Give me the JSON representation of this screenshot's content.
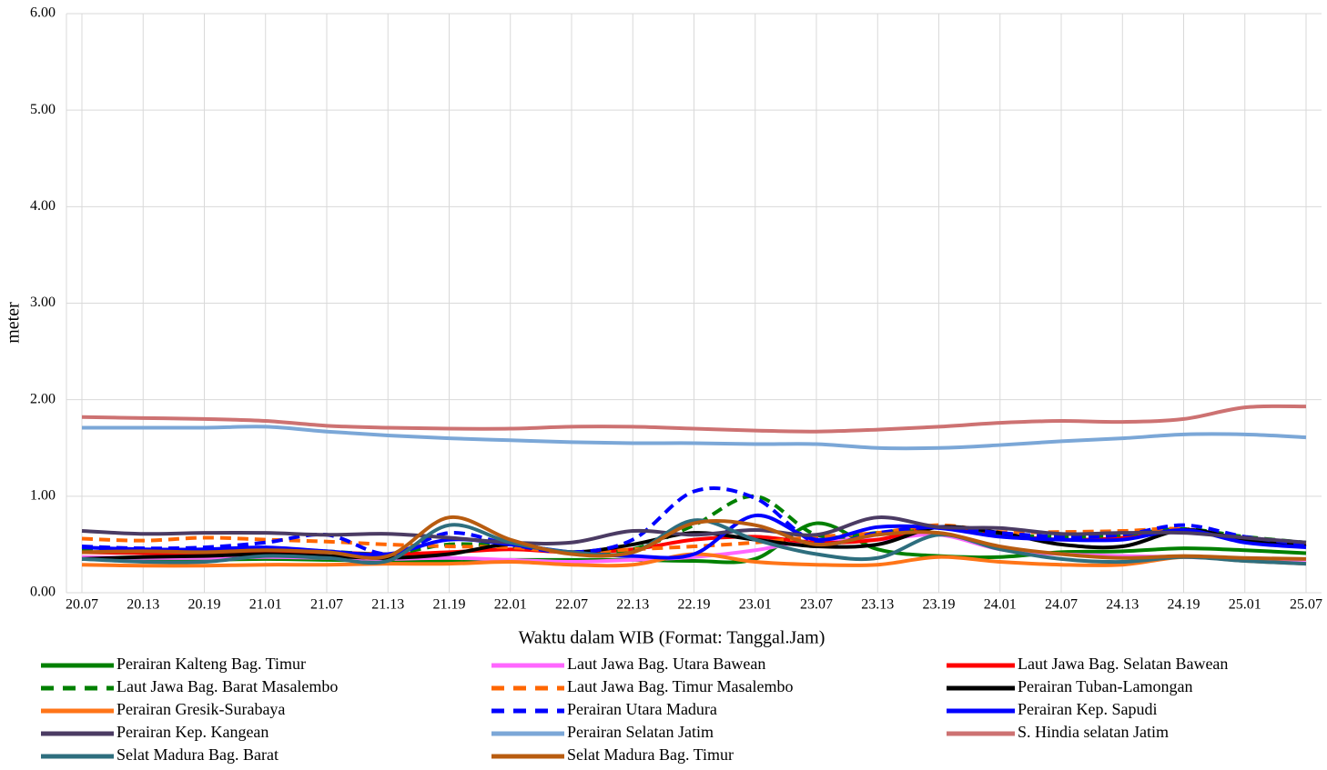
{
  "chart_data": {
    "type": "line",
    "x_label": "Waktu dalam WIB (Format: Tanggal.Jam)",
    "y_label": "meter",
    "categories": [
      "20.07",
      "20.13",
      "20.19",
      "21.01",
      "21.07",
      "21.13",
      "21.19",
      "22.01",
      "22.07",
      "22.13",
      "22.19",
      "23.01",
      "23.07",
      "23.13",
      "23.19",
      "24.01",
      "24.07",
      "24.13",
      "24.19",
      "25.01",
      "25.07"
    ],
    "ylim": [
      0,
      6
    ],
    "yticks": [
      {
        "value": 0,
        "label": "0.00"
      },
      {
        "value": 1,
        "label": "1.00"
      },
      {
        "value": 2,
        "label": "2.00"
      },
      {
        "value": 3,
        "label": "3.00"
      },
      {
        "value": 4,
        "label": "4.00"
      },
      {
        "value": 5,
        "label": "5.00"
      },
      {
        "value": 6,
        "label": "6.00"
      }
    ],
    "grid": true,
    "series": [
      {
        "name": "Perairan Kalteng Bag. Timur",
        "color": "#008000",
        "values": [
          0.35,
          0.34,
          0.34,
          0.35,
          0.34,
          0.33,
          0.33,
          0.34,
          0.34,
          0.34,
          0.33,
          0.35,
          0.72,
          0.45,
          0.38,
          0.37,
          0.42,
          0.43,
          0.46,
          0.44,
          0.41
        ]
      },
      {
        "name": "Laut Jawa Bag. Utara Bawean",
        "color": "#ff66ff",
        "values": [
          0.37,
          0.36,
          0.36,
          0.37,
          0.36,
          0.35,
          0.36,
          0.34,
          0.32,
          0.34,
          0.37,
          0.44,
          0.55,
          0.55,
          0.6,
          0.45,
          0.4,
          0.38,
          0.37,
          0.35,
          0.34
        ]
      },
      {
        "name": "Laut Jawa Bag. Selatan Bawean",
        "color": "#ff0000",
        "values": [
          0.42,
          0.41,
          0.41,
          0.43,
          0.42,
          0.4,
          0.42,
          0.45,
          0.42,
          0.45,
          0.55,
          0.58,
          0.52,
          0.55,
          0.68,
          0.6,
          0.55,
          0.57,
          0.65,
          0.55,
          0.5
        ]
      },
      {
        "name": "Laut Jawa Bag. Barat Masalembo",
        "color": "#008000",
        "dashed": true,
        "values": [
          0.44,
          0.43,
          0.43,
          0.45,
          0.43,
          0.4,
          0.5,
          0.48,
          0.42,
          0.45,
          0.7,
          1.0,
          0.6,
          0.62,
          0.68,
          0.6,
          0.58,
          0.6,
          0.66,
          0.58,
          0.52
        ]
      },
      {
        "name": "Laut Jawa Bag. Timur Masalembo",
        "color": "#ff6600",
        "dashed": true,
        "values": [
          0.56,
          0.54,
          0.57,
          0.55,
          0.53,
          0.5,
          0.48,
          0.47,
          0.42,
          0.45,
          0.48,
          0.52,
          0.58,
          0.62,
          0.7,
          0.63,
          0.63,
          0.64,
          0.66,
          0.55,
          0.5
        ]
      },
      {
        "name": "Perairan Tuban-Lamongan",
        "color": "#000000",
        "values": [
          0.35,
          0.37,
          0.38,
          0.4,
          0.38,
          0.36,
          0.4,
          0.5,
          0.42,
          0.5,
          0.62,
          0.55,
          0.48,
          0.5,
          0.68,
          0.62,
          0.5,
          0.48,
          0.65,
          0.55,
          0.48
        ]
      },
      {
        "name": "Perairan Gresik-Surabaya",
        "color": "#ff7518",
        "values": [
          0.29,
          0.28,
          0.28,
          0.29,
          0.29,
          0.3,
          0.3,
          0.32,
          0.29,
          0.29,
          0.4,
          0.32,
          0.29,
          0.29,
          0.37,
          0.32,
          0.29,
          0.29,
          0.37,
          0.33,
          0.3
        ]
      },
      {
        "name": "Perairan Utara Madura",
        "color": "#0000ff",
        "dashed": true,
        "values": [
          0.48,
          0.46,
          0.47,
          0.52,
          0.6,
          0.4,
          0.62,
          0.5,
          0.42,
          0.55,
          1.05,
          0.98,
          0.52,
          0.62,
          0.68,
          0.62,
          0.58,
          0.6,
          0.7,
          0.58,
          0.5
        ]
      },
      {
        "name": "Perairan Kep. Sapudi",
        "color": "#0000ff",
        "values": [
          0.47,
          0.45,
          0.45,
          0.47,
          0.43,
          0.4,
          0.55,
          0.5,
          0.42,
          0.38,
          0.4,
          0.8,
          0.55,
          0.68,
          0.67,
          0.58,
          0.55,
          0.55,
          0.65,
          0.52,
          0.47
        ]
      },
      {
        "name": "Perairan Kep. Kangean",
        "color": "#4b3b63",
        "values": [
          0.64,
          0.61,
          0.62,
          0.62,
          0.6,
          0.61,
          0.57,
          0.52,
          0.52,
          0.64,
          0.6,
          0.65,
          0.6,
          0.78,
          0.68,
          0.67,
          0.61,
          0.62,
          0.62,
          0.57,
          0.52
        ]
      },
      {
        "name": "Perairan Selatan Jatim",
        "color": "#7ba7d7",
        "values": [
          1.71,
          1.71,
          1.71,
          1.72,
          1.67,
          1.63,
          1.6,
          1.58,
          1.56,
          1.55,
          1.55,
          1.54,
          1.54,
          1.5,
          1.5,
          1.53,
          1.57,
          1.6,
          1.64,
          1.64,
          1.61
        ]
      },
      {
        "name": "S. Hindia selatan Jatim",
        "color": "#cd7272",
        "values": [
          1.82,
          1.81,
          1.8,
          1.78,
          1.73,
          1.71,
          1.7,
          1.7,
          1.72,
          1.72,
          1.7,
          1.68,
          1.67,
          1.69,
          1.72,
          1.76,
          1.78,
          1.77,
          1.8,
          1.92,
          1.93
        ]
      },
      {
        "name": "Selat Madura Bag. Barat",
        "color": "#2e6e7e",
        "values": [
          0.35,
          0.32,
          0.32,
          0.38,
          0.36,
          0.33,
          0.7,
          0.52,
          0.42,
          0.42,
          0.75,
          0.55,
          0.4,
          0.36,
          0.6,
          0.45,
          0.35,
          0.32,
          0.37,
          0.33,
          0.3
        ]
      },
      {
        "name": "Selat Madura Bag. Timur",
        "color": "#b85c10",
        "values": [
          0.42,
          0.43,
          0.42,
          0.44,
          0.42,
          0.38,
          0.78,
          0.55,
          0.4,
          0.42,
          0.72,
          0.7,
          0.5,
          0.6,
          0.62,
          0.48,
          0.4,
          0.36,
          0.38,
          0.36,
          0.35
        ]
      }
    ]
  }
}
